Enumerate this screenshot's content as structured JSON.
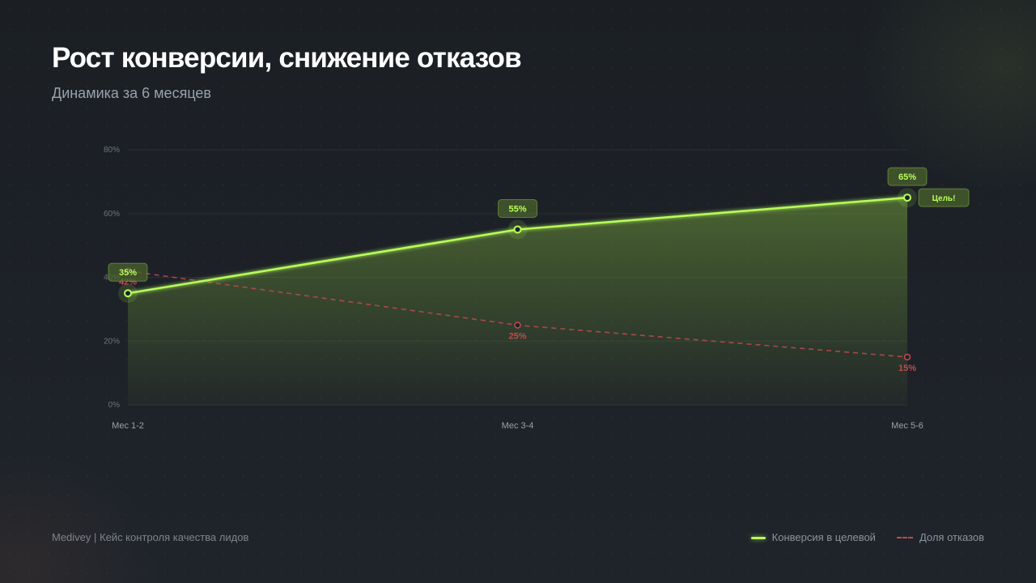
{
  "slide": {
    "title": "Рост конверсии, снижение отказов",
    "subtitle": "Динамика за 6 месяцев",
    "footer": "Medivey | Кейс контроля качества лидов"
  },
  "colors": {
    "accent": "#b8ff5a",
    "danger": "#c24a4a",
    "background": "#1e2329"
  },
  "chart_data": {
    "type": "line",
    "categories": [
      "Мес 1-2",
      "Мес 3-4",
      "Мес 5-6"
    ],
    "ylim": [
      0,
      80
    ],
    "yticks": [
      "0%",
      "20%",
      "40%",
      "60%",
      "80%"
    ],
    "grid": true,
    "legend_position": "bottom-right",
    "series": [
      {
        "name": "Конверсия в целевой",
        "values": [
          35,
          55,
          65
        ],
        "labels": [
          "35%",
          "55%",
          "65%"
        ],
        "style": "solid-area",
        "color": "#b8ff5a"
      },
      {
        "name": "Доля отказов",
        "values": [
          42,
          25,
          15
        ],
        "labels": [
          "42%",
          "25%",
          "15%"
        ],
        "style": "dashed",
        "color": "#c24a4a"
      }
    ],
    "annotations": [
      {
        "text": "Цель!",
        "category_index": 2
      }
    ]
  }
}
